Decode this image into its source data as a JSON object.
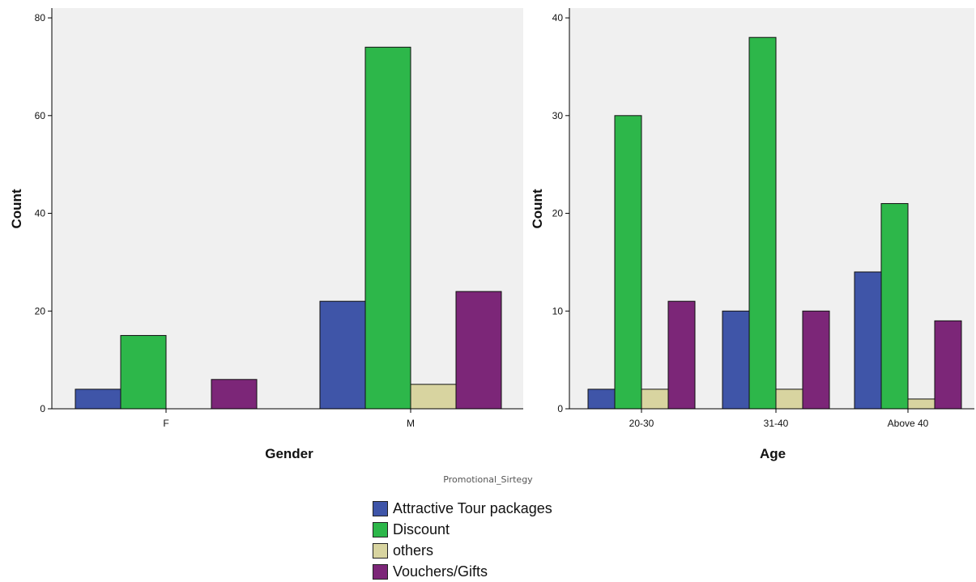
{
  "legend": {
    "title": "Promotional_Sirtegy",
    "items": [
      {
        "label": "Attractive Tour packages",
        "color": "#3f55a8"
      },
      {
        "label": "Discount",
        "color": "#2db74a"
      },
      {
        "label": "others",
        "color": "#d8d4a0"
      },
      {
        "label": "Vouchers/Gifts",
        "color": "#7c2678"
      }
    ]
  },
  "chart_data": [
    {
      "type": "bar",
      "xlabel": "Gender",
      "ylabel": "Count",
      "categories": [
        "F",
        "M"
      ],
      "ylim": [
        0,
        82
      ],
      "yticks": [
        0,
        20,
        40,
        60,
        80
      ],
      "grid": false,
      "series": [
        {
          "name": "Attractive Tour packages",
          "values": [
            4,
            22
          ]
        },
        {
          "name": "Discount",
          "values": [
            15,
            74
          ]
        },
        {
          "name": "others",
          "values": [
            0,
            5
          ]
        },
        {
          "name": "Vouchers/Gifts",
          "values": [
            6,
            24
          ]
        }
      ]
    },
    {
      "type": "bar",
      "xlabel": "Age",
      "ylabel": "Count",
      "categories": [
        "20-30",
        "31-40",
        "Above 40"
      ],
      "ylim": [
        0,
        41
      ],
      "yticks": [
        0,
        10,
        20,
        30,
        40
      ],
      "grid": false,
      "series": [
        {
          "name": "Attractive Tour packages",
          "values": [
            2,
            10,
            14
          ]
        },
        {
          "name": "Discount",
          "values": [
            30,
            38,
            21
          ]
        },
        {
          "name": "others",
          "values": [
            2,
            2,
            1
          ]
        },
        {
          "name": "Vouchers/Gifts",
          "values": [
            11,
            10,
            9
          ]
        }
      ]
    }
  ]
}
